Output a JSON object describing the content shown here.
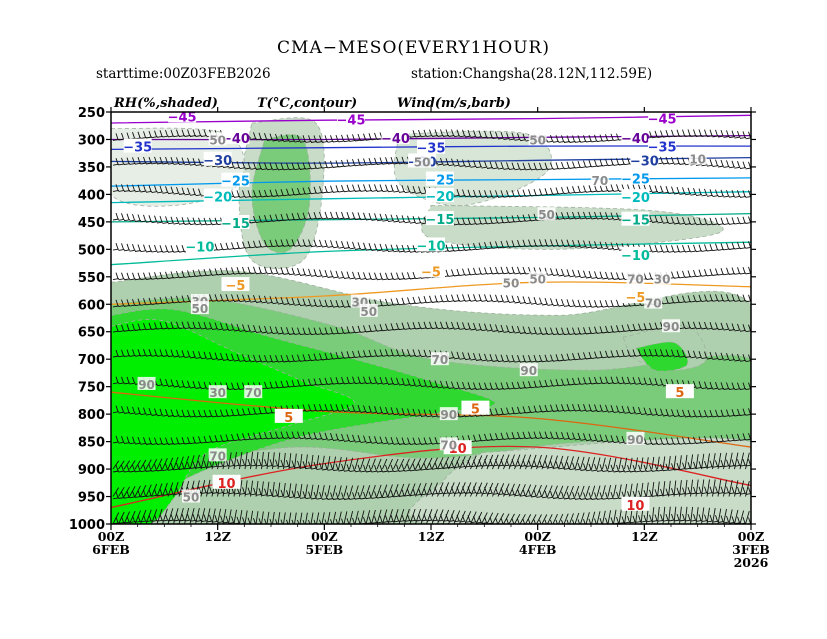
{
  "chart_data": {
    "type": "heatmap",
    "title": "CMA−MESO(EVERY1HOUR)",
    "starttime": "starttime:00Z03FEB2026",
    "station": "station:Changsha(28.12N,112.59E)",
    "field_labels": {
      "rh": "RH(%,shaded)",
      "temp": "T(°C,contour)",
      "wind": "Wind(m/s,barb)"
    },
    "ylabel": "",
    "yticks": [
      "250",
      "300",
      "350",
      "400",
      "450",
      "500",
      "550",
      "600",
      "650",
      "700",
      "750",
      "800",
      "850",
      "900",
      "950",
      "1000"
    ],
    "ylim": [
      1000,
      250
    ],
    "xticks": [
      {
        "line1": "00Z",
        "line2": "6FEB",
        "line3": ""
      },
      {
        "line1": "12Z",
        "line2": "",
        "line3": ""
      },
      {
        "line1": "00Z",
        "line2": "5FEB",
        "line3": ""
      },
      {
        "line1": "12Z",
        "line2": "",
        "line3": ""
      },
      {
        "line1": "00Z",
        "line2": "4FEB",
        "line3": ""
      },
      {
        "line1": "12Z",
        "line2": "",
        "line3": ""
      },
      {
        "line1": "00Z",
        "line2": "3FEB",
        "line3": "2026"
      }
    ],
    "xlim_hours_before_end": [
      72,
      0
    ],
    "temperature_contours": [
      {
        "value": -45,
        "label": "−45",
        "color": "#9900cc",
        "p": [
          270,
          265,
          262,
          256
        ],
        "label_at": [
          [
            10,
            262
          ],
          [
            45,
            264
          ],
          [
            64,
            258
          ]
        ]
      },
      {
        "value": -40,
        "label": "−40",
        "color": "#660099",
        "p": [
          300,
          300,
          296,
          293
        ],
        "label_at": [
          [
            13,
            297
          ],
          [
            40,
            297
          ],
          [
            58,
            297
          ]
        ]
      },
      {
        "value": -35,
        "label": "−35",
        "color": "#2233cc",
        "p": [
          318,
          315,
          312,
          312
        ],
        "label_at": [
          [
            10,
            313
          ],
          [
            36,
            315
          ],
          [
            69,
            313
          ]
        ]
      },
      {
        "value": -30,
        "label": "−30",
        "color": "#1f3fa0",
        "p": [
          340,
          343,
          338,
          333
        ],
        "label_at": [
          [
            12,
            338
          ],
          [
            37,
            340
          ],
          [
            60,
            337
          ]
        ]
      },
      {
        "value": -25,
        "label": "−25",
        "color": "#0099ee",
        "p": [
          385,
          376,
          373,
          370
        ],
        "label_at": [
          [
            13,
            371
          ],
          [
            35,
            373
          ],
          [
            58,
            375
          ]
        ]
      },
      {
        "value": -20,
        "label": "−20",
        "color": "#00bbbb",
        "p": [
          415,
          408,
          402,
          395
        ],
        "label_at": [
          [
            13,
            405
          ],
          [
            35,
            403
          ],
          [
            60,
            404
          ]
        ]
      },
      {
        "value": -15,
        "label": "−15",
        "color": "#00aa88",
        "p": [
          450,
          446,
          442,
          435
        ],
        "label_at": [
          [
            13,
            446
          ],
          [
            35,
            445
          ],
          [
            58,
            452
          ]
        ]
      },
      {
        "value": -10,
        "label": "−10",
        "color": "#00bb99",
        "p": [
          528,
          504,
          494,
          487
        ],
        "label_at": [
          [
            13,
            510
          ],
          [
            36,
            493
          ],
          [
            62,
            495
          ]
        ]
      },
      {
        "value": -5,
        "label": "−5",
        "color": "#ee9922",
        "p": [
          600,
          585,
          560,
          568
        ],
        "label_at": [
          [
            13,
            587
          ],
          [
            36,
            540
          ],
          [
            58,
            565
          ]
        ]
      },
      {
        "value": 5,
        "label": "5",
        "color": "#dd6611",
        "p": [
          760,
          795,
          808,
          860
        ],
        "label_at": [
          [
            8,
            760
          ],
          [
            31,
            790
          ],
          [
            52,
            805
          ]
        ]
      },
      {
        "value": 10,
        "label": "10",
        "color": "#dd2222",
        "p": [
          970,
          890,
          860,
          930
        ],
        "label_at": [
          [
            13,
            965
          ],
          [
            33,
            862
          ],
          [
            59,
            925
          ]
        ]
      }
    ],
    "rh_labels": [
      {
        "label": "10",
        "at": [
          6,
          335
        ]
      },
      {
        "label": "70",
        "at": [
          17,
          374
        ]
      },
      {
        "label": "50",
        "at": [
          24,
          300
        ]
      },
      {
        "label": "50",
        "at": [
          23,
          436
        ]
      },
      {
        "label": "50",
        "at": [
          37,
          340
        ]
      },
      {
        "label": "50",
        "at": [
          60,
          300
        ]
      },
      {
        "label": "30",
        "at": [
          10,
          553
        ]
      },
      {
        "label": "70",
        "at": [
          13,
          553
        ]
      },
      {
        "label": "50",
        "at": [
          24,
          553
        ]
      },
      {
        "label": "50",
        "at": [
          27,
          560
        ]
      },
      {
        "label": "70",
        "at": [
          11,
          597
        ]
      },
      {
        "label": "30",
        "at": [
          44,
          595
        ]
      },
      {
        "label": "50",
        "at": [
          43,
          612
        ]
      },
      {
        "label": "30",
        "at": [
          62,
          594
        ]
      },
      {
        "label": "50",
        "at": [
          62,
          607
        ]
      },
      {
        "label": "90",
        "at": [
          9,
          640
        ]
      },
      {
        "label": "70",
        "at": [
          35,
          700
        ]
      },
      {
        "label": "90",
        "at": [
          25,
          720
        ]
      },
      {
        "label": "90",
        "at": [
          34,
          800
        ]
      },
      {
        "label": "90",
        "at": [
          13,
          845
        ]
      },
      {
        "label": "70",
        "at": [
          34,
          855
        ]
      },
      {
        "label": "70",
        "at": [
          56,
          760
        ]
      },
      {
        "label": "30",
        "at": [
          60,
          760
        ]
      },
      {
        "label": "90",
        "at": [
          68,
          745
        ]
      },
      {
        "label": "70",
        "at": [
          60,
          875
        ]
      },
      {
        "label": "50",
        "at": [
          63,
          950
        ]
      }
    ],
    "colors": {
      "rh_90": "#00ee00",
      "rh_80": "#2ed82e",
      "rh_70": "#7acc7a",
      "rh_60": "#aed0ae",
      "rh_50": "#c8dcc8",
      "rh_40": "#d8e6d8",
      "rh_30": "#e6eee6"
    },
    "grid": false,
    "legend": "none"
  }
}
